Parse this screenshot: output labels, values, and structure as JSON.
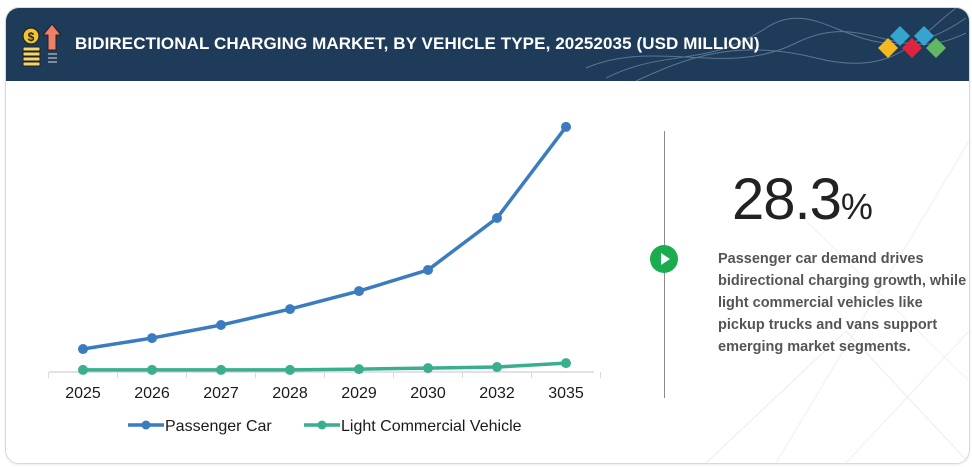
{
  "header": {
    "title": "BIDIRECTIONAL CHARGING MARKET, BY VEHICLE TYPE, 20252035 (USD MILLION)",
    "icon": "coins-growth-arrow-icon",
    "logo": "diamond-tiles-logo"
  },
  "colors": {
    "header_bg": "#1f3b5a",
    "passenger_car": "#3b7bbf",
    "light_commercial_vehicle": "#3aae8f",
    "play_button": "#1aac4e",
    "logo_yellow": "#f4b820",
    "logo_blue": "#35a5d0",
    "logo_red": "#e0243f",
    "logo_green": "#61b863"
  },
  "chart_data": {
    "type": "line",
    "title": "BIDIRECTIONAL CHARGING MARKET, BY VEHICLE TYPE, 20252035 (USD MILLION)",
    "xlabel": "",
    "ylabel": "",
    "categories": [
      "2025",
      "2026",
      "2027",
      "2028",
      "2029",
      "2030",
      "2032",
      "3035"
    ],
    "series": [
      {
        "name": "Passenger Car",
        "values": [
          8.8,
          13.0,
          18.0,
          24.1,
          31.0,
          39.1,
          59.0,
          93.9
        ]
      },
      {
        "name": "Light Commercial Vehicle",
        "values": [
          0.8,
          0.8,
          0.8,
          0.8,
          1.1,
          1.5,
          1.9,
          3.4
        ]
      }
    ],
    "ylim": [
      0,
      100
    ],
    "y_axis_visible": false,
    "grid": false,
    "legend_position": "bottom"
  },
  "highlight": {
    "value": "28.3",
    "unit": "%",
    "description": "Passenger car demand drives bidirectional charging growth, while light commercial vehicles like pickup trucks and vans support emerging market segments."
  }
}
